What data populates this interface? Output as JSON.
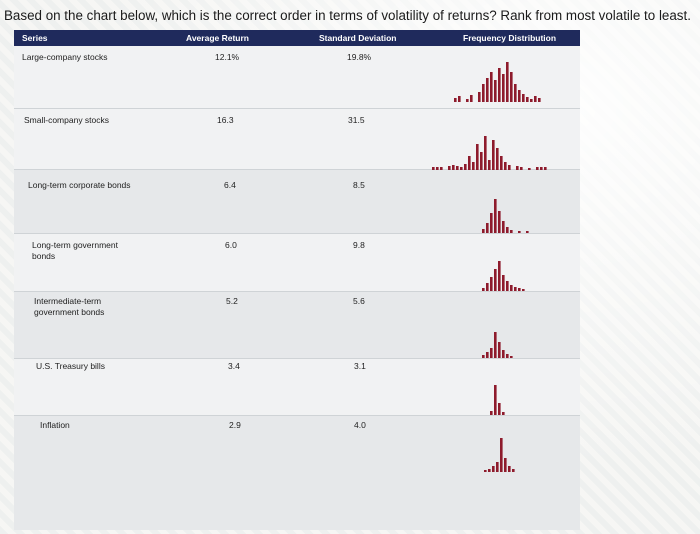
{
  "question": "Based on the chart below, which is the correct order in terms of volatility of returns? Rank from most volatile to least.",
  "table": {
    "headers": {
      "series": "Series",
      "avg_return": "Average Return",
      "std_dev": "Standard Deviation",
      "freq": "Frequency Distribution"
    },
    "rows": [
      {
        "series": "Large-company stocks",
        "avg": "12.1%",
        "sd": "19.8%"
      },
      {
        "series": "Small-company stocks",
        "avg": "16.3",
        "sd": "31.5"
      },
      {
        "series": "Long-term corporate bonds",
        "avg": "6.4",
        "sd": "8.5"
      },
      {
        "series": "Long-term government bonds",
        "avg": "6.0",
        "sd": "9.8"
      },
      {
        "series": "Intermediate-term government bonds",
        "avg": "5.2",
        "sd": "5.6"
      },
      {
        "series": "U.S. Treasury bills",
        "avg": "3.4",
        "sd": "3.1"
      },
      {
        "series": "Inflation",
        "avg": "2.9",
        "sd": "4.0"
      }
    ],
    "colors": {
      "header_bg": "#1f2a5c",
      "bar": "#8e1b2c"
    }
  }
}
